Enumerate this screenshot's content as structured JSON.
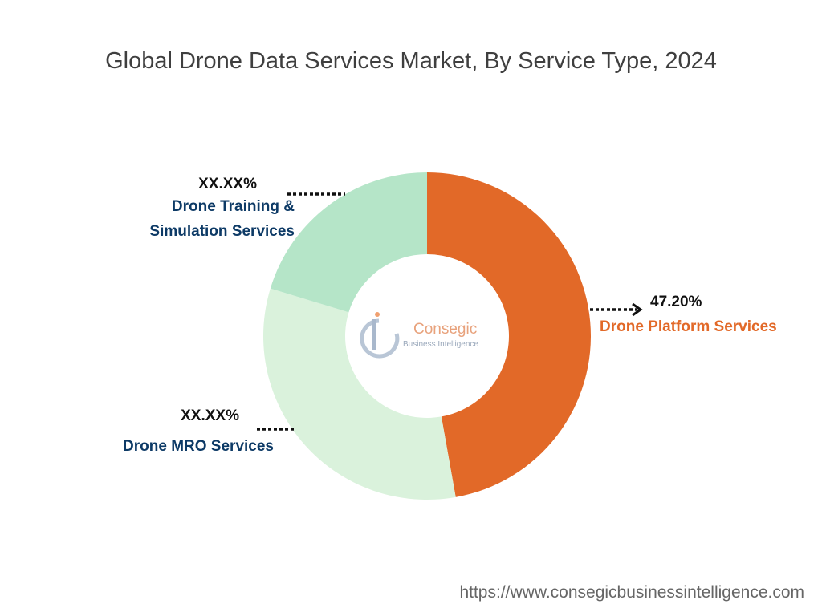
{
  "chart_data": {
    "type": "pie",
    "hole": 0.5,
    "title": "Global Drone Data Services Market, By Service Type, 2024",
    "categories": [
      "Drone Platform Services",
      "Drone MRO Services",
      "Drone Training & Simulation Services"
    ],
    "values": [
      47.2,
      32.5,
      20.3
    ],
    "value_labels": [
      "47.20%",
      "XX.XX%",
      "XX.XX%"
    ],
    "colors": [
      "#e26928",
      "#daf2dc",
      "#b5e5c8"
    ],
    "watermark": [
      "Consegic",
      "Business Intelligence"
    ],
    "source": "https://www.consegicbusinessintelligence.com"
  }
}
